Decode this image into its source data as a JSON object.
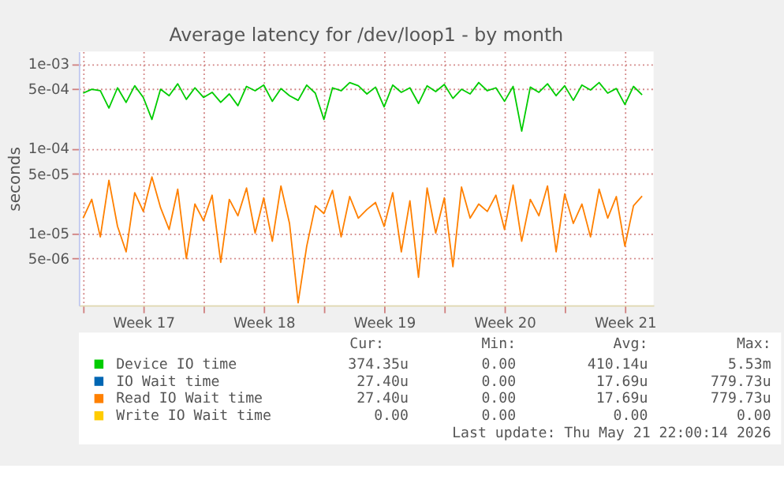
{
  "chart_data": {
    "type": "line",
    "title": "Average latency for /dev/loop1 - by month",
    "ylabel": "seconds",
    "log": "y",
    "ylim": [
      1.4e-06,
      0.0014
    ],
    "yticks": [
      {
        "value": 5e-06,
        "label": "5e-06"
      },
      {
        "value": 1e-05,
        "label": "1e-05"
      },
      {
        "value": 5e-05,
        "label": "5e-05"
      },
      {
        "value": 0.0001,
        "label": "1e-04"
      },
      {
        "value": 0.0005,
        "label": "5e-04"
      },
      {
        "value": 0.001,
        "label": "1e-03"
      }
    ],
    "xlim": [
      "2026-04-19T18:00",
      "2026-05-23T04:00"
    ],
    "xticks": [
      {
        "value": "2026-04-20",
        "label": null
      },
      {
        "value": "2026-04-23T12:00",
        "label": "Week 17"
      },
      {
        "value": "2026-04-27",
        "label": null
      },
      {
        "value": "2026-04-30T12:00",
        "label": "Week 18"
      },
      {
        "value": "2026-05-04",
        "label": null
      },
      {
        "value": "2026-05-07T12:00",
        "label": "Week 19"
      },
      {
        "value": "2026-05-11",
        "label": null
      },
      {
        "value": "2026-05-14T12:00",
        "label": "Week 20"
      },
      {
        "value": "2026-05-18",
        "label": null
      },
      {
        "value": "2026-05-21T12:00",
        "label": "Week 21"
      }
    ],
    "grid": true,
    "legend": "bottom",
    "x": [
      "2026-04-20T00:00",
      "2026-04-20T12:00",
      "2026-04-21T00:00",
      "2026-04-21T12:00",
      "2026-04-22T00:00",
      "2026-04-22T12:00",
      "2026-04-23T00:00",
      "2026-04-23T12:00",
      "2026-04-24T00:00",
      "2026-04-24T12:00",
      "2026-04-25T00:00",
      "2026-04-25T12:00",
      "2026-04-26T00:00",
      "2026-04-26T12:00",
      "2026-04-27T00:00",
      "2026-04-27T12:00",
      "2026-04-28T00:00",
      "2026-04-28T12:00",
      "2026-04-29T00:00",
      "2026-04-29T12:00",
      "2026-04-30T00:00",
      "2026-04-30T12:00",
      "2026-05-01T00:00",
      "2026-05-01T12:00",
      "2026-05-02T00:00",
      "2026-05-02T12:00",
      "2026-05-03T00:00",
      "2026-05-03T12:00",
      "2026-05-04T00:00",
      "2026-05-04T12:00",
      "2026-05-05T00:00",
      "2026-05-05T12:00",
      "2026-05-06T00:00",
      "2026-05-06T12:00",
      "2026-05-07T00:00",
      "2026-05-07T12:00",
      "2026-05-08T00:00",
      "2026-05-08T12:00",
      "2026-05-09T00:00",
      "2026-05-09T12:00",
      "2026-05-10T00:00",
      "2026-05-10T12:00",
      "2026-05-11T00:00",
      "2026-05-11T12:00",
      "2026-05-12T00:00",
      "2026-05-12T12:00",
      "2026-05-13T00:00",
      "2026-05-13T12:00",
      "2026-05-14T00:00",
      "2026-05-14T12:00",
      "2026-05-15T00:00",
      "2026-05-15T12:00",
      "2026-05-16T00:00",
      "2026-05-16T12:00",
      "2026-05-17T00:00",
      "2026-05-17T12:00",
      "2026-05-18T00:00",
      "2026-05-18T12:00",
      "2026-05-19T00:00",
      "2026-05-19T12:00",
      "2026-05-20T00:00",
      "2026-05-20T12:00",
      "2026-05-21T00:00",
      "2026-05-21T12:00",
      "2026-05-22T00:00",
      "2026-05-22T12:00"
    ],
    "series": [
      {
        "name": "Device IO time",
        "color": "#00cc00",
        "values": [
          0.00045,
          0.0005,
          0.00048,
          0.0003,
          0.00052,
          0.00035,
          0.00055,
          0.0004,
          0.00022,
          0.0005,
          0.00042,
          0.00058,
          0.00038,
          0.00052,
          0.0004,
          0.00046,
          0.00035,
          0.00044,
          0.00032,
          0.00054,
          0.00048,
          0.00056,
          0.00036,
          0.00051,
          0.00042,
          0.00037,
          0.00056,
          0.00045,
          0.00022,
          0.00052,
          0.00048,
          0.0006,
          0.00055,
          0.00044,
          0.00053,
          0.00031,
          0.00056,
          0.00046,
          0.00052,
          0.00034,
          0.00055,
          0.00047,
          0.00057,
          0.00039,
          0.0005,
          0.00044,
          0.0006,
          0.00048,
          0.00052,
          0.00036,
          0.00054,
          0.00016,
          0.00053,
          0.00046,
          0.00058,
          0.00042,
          0.00055,
          0.00037,
          0.00056,
          0.00049,
          0.0006,
          0.00045,
          0.00051,
          0.00033,
          0.00054,
          0.00043
        ]
      },
      {
        "name": "IO Wait time",
        "color": "#0066b3",
        "values": [
          null,
          null,
          null,
          null,
          null,
          null,
          null,
          null,
          null,
          null,
          null,
          null,
          null,
          null,
          null,
          null,
          null,
          null,
          null,
          null,
          null,
          null,
          null,
          null,
          null,
          null,
          null,
          null,
          null,
          null,
          null,
          null,
          null,
          null,
          null,
          null,
          null,
          null,
          null,
          null,
          null,
          null,
          null,
          null,
          null,
          null,
          null,
          null,
          null,
          null,
          null,
          null,
          null,
          null,
          null,
          null,
          null,
          null,
          null,
          null,
          null,
          null,
          null,
          null,
          null,
          null
        ]
      },
      {
        "name": "Read IO Wait time",
        "color": "#ff8000",
        "values": [
          1.5e-05,
          2.5e-05,
          9e-06,
          4.2e-05,
          1.2e-05,
          6e-06,
          3e-05,
          1.8e-05,
          4.6e-05,
          2e-05,
          1.1e-05,
          3.3e-05,
          5e-06,
          2.2e-05,
          1.4e-05,
          2.8e-05,
          4.5e-06,
          2.5e-05,
          1.6e-05,
          3.4e-05,
          1e-05,
          2.6e-05,
          8e-06,
          3.6e-05,
          1.3e-05,
          1.5e-06,
          7e-06,
          2.1e-05,
          1.7e-05,
          3.2e-05,
          9e-06,
          2.7e-05,
          1.5e-05,
          1.9e-05,
          2.3e-05,
          1.2e-05,
          3e-05,
          6e-06,
          2.4e-05,
          3e-06,
          3.4e-05,
          1e-05,
          2.6e-05,
          4e-06,
          3.5e-05,
          1.5e-05,
          2.2e-05,
          1.8e-05,
          2.8e-05,
          1.1e-05,
          3.7e-05,
          8e-06,
          2.5e-05,
          1.6e-05,
          3.6e-05,
          6e-06,
          2.9e-05,
          1.3e-05,
          2.2e-05,
          9e-06,
          3.3e-05,
          1.5e-05,
          2.7e-05,
          7e-06,
          2.1e-05,
          2.74e-05
        ]
      },
      {
        "name": "Write IO Wait time",
        "color": "#ffcc00",
        "values": [
          null,
          null,
          null,
          null,
          null,
          null,
          null,
          null,
          null,
          null,
          null,
          null,
          null,
          null,
          null,
          null,
          null,
          null,
          null,
          null,
          null,
          null,
          null,
          null,
          null,
          null,
          null,
          null,
          null,
          null,
          null,
          null,
          null,
          null,
          null,
          null,
          null,
          null,
          null,
          null,
          null,
          null,
          null,
          null,
          null,
          null,
          null,
          null,
          null,
          null,
          null,
          null,
          null,
          null,
          null,
          null,
          null,
          null,
          null,
          null,
          null,
          null,
          null,
          null,
          null,
          null
        ]
      }
    ],
    "annotations": [
      "Cur:",
      "Min:",
      "Avg:",
      "Max:",
      "374.35u",
      "0.00",
      "410.14u",
      "5.53m",
      "27.40u",
      "0.00",
      "17.69u",
      "779.73u",
      "27.40u",
      "0.00",
      "17.69u",
      "779.73u",
      "0.00",
      "0.00",
      "0.00",
      "0.00",
      "Last update: Thu May 21 22:00:14 2026"
    ]
  }
}
